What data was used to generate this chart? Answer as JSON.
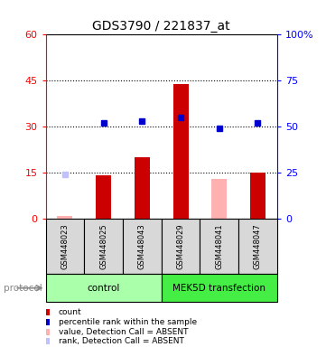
{
  "title": "GDS3790 / 221837_at",
  "samples": [
    "GSM448023",
    "GSM448025",
    "GSM448043",
    "GSM448029",
    "GSM448041",
    "GSM448047"
  ],
  "count_values": [
    1,
    14,
    20,
    44,
    13,
    15
  ],
  "count_absent": [
    true,
    false,
    false,
    false,
    true,
    false
  ],
  "count_color_present": "#cc0000",
  "count_color_absent": "#ffb0b0",
  "rank_values": [
    24,
    52,
    53,
    55,
    49,
    52
  ],
  "rank_absent": [
    true,
    false,
    false,
    false,
    false,
    false
  ],
  "rank_color_present": "#0000cc",
  "rank_color_absent": "#c0c0ff",
  "ylim_left": [
    0,
    60
  ],
  "ylim_right": [
    0,
    100
  ],
  "yticks_left": [
    0,
    15,
    30,
    45,
    60
  ],
  "ytick_labels_left": [
    "0",
    "15",
    "30",
    "45",
    "60"
  ],
  "yticks_right": [
    0,
    25,
    50,
    75,
    100
  ],
  "ytick_labels_right": [
    "0",
    "25",
    "50",
    "75",
    "100%"
  ],
  "hlines": [
    15,
    30,
    45
  ],
  "group_labels": [
    "control",
    "MEK5D transfection"
  ],
  "group_ranges": [
    [
      0,
      2
    ],
    [
      3,
      5
    ]
  ],
  "group_colors": [
    "#aaffaa",
    "#44ee44"
  ],
  "protocol_label": "protocol",
  "legend": [
    {
      "label": "count",
      "color": "#cc0000"
    },
    {
      "label": "percentile rank within the sample",
      "color": "#0000cc"
    },
    {
      "label": "value, Detection Call = ABSENT",
      "color": "#ffb0b0"
    },
    {
      "label": "rank, Detection Call = ABSENT",
      "color": "#c0c0ff"
    }
  ],
  "bar_width": 0.4,
  "marker_size": 5,
  "bg_color": "#d8d8d8",
  "fig_width": 3.61,
  "fig_height": 3.84
}
